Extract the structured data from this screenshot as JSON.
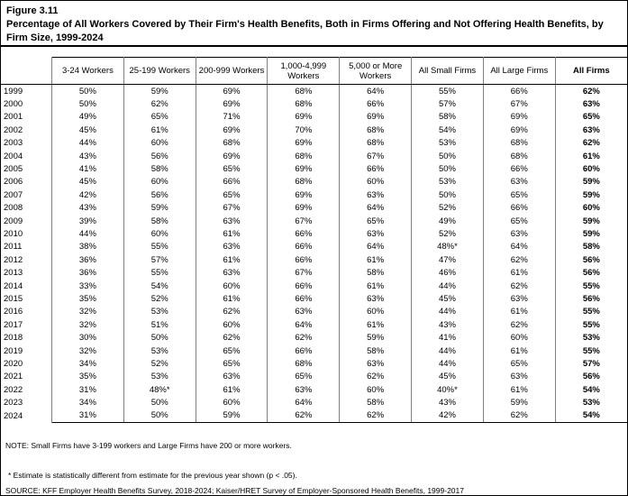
{
  "figure": {
    "number": "Figure 3.11",
    "title": "Percentage of All Workers Covered by Their Firm's Health Benefits, Both in Firms Offering and Not Offering Health Benefits, by Firm Size, 1999-2024"
  },
  "table": {
    "columns": [
      "",
      "3-24 Workers",
      "25-199 Workers",
      "200-999 Workers",
      "1,000-4,999 Workers",
      "5,000 or More Workers",
      "All Small Firms",
      "All Large Firms",
      "All Firms"
    ],
    "rows": [
      [
        "1999",
        "50%",
        "59%",
        "69%",
        "68%",
        "64%",
        "55%",
        "66%",
        "62%"
      ],
      [
        "2000",
        "50%",
        "62%",
        "69%",
        "68%",
        "66%",
        "57%",
        "67%",
        "63%"
      ],
      [
        "2001",
        "49%",
        "65%",
        "71%",
        "69%",
        "69%",
        "58%",
        "69%",
        "65%"
      ],
      [
        "2002",
        "45%",
        "61%",
        "69%",
        "70%",
        "68%",
        "54%",
        "69%",
        "63%"
      ],
      [
        "2003",
        "44%",
        "60%",
        "68%",
        "69%",
        "68%",
        "53%",
        "68%",
        "62%"
      ],
      [
        "2004",
        "43%",
        "56%",
        "69%",
        "68%",
        "67%",
        "50%",
        "68%",
        "61%"
      ],
      [
        "2005",
        "41%",
        "58%",
        "65%",
        "69%",
        "66%",
        "50%",
        "66%",
        "60%"
      ],
      [
        "2006",
        "45%",
        "60%",
        "66%",
        "68%",
        "60%",
        "53%",
        "63%",
        "59%"
      ],
      [
        "2007",
        "42%",
        "56%",
        "65%",
        "69%",
        "63%",
        "50%",
        "65%",
        "59%"
      ],
      [
        "2008",
        "43%",
        "59%",
        "67%",
        "69%",
        "64%",
        "52%",
        "66%",
        "60%"
      ],
      [
        "2009",
        "39%",
        "58%",
        "63%",
        "67%",
        "65%",
        "49%",
        "65%",
        "59%"
      ],
      [
        "2010",
        "44%",
        "60%",
        "61%",
        "66%",
        "63%",
        "52%",
        "63%",
        "59%"
      ],
      [
        "2011",
        "38%",
        "55%",
        "63%",
        "66%",
        "64%",
        "48%*",
        "64%",
        "58%"
      ],
      [
        "2012",
        "36%",
        "57%",
        "61%",
        "66%",
        "61%",
        "47%",
        "62%",
        "56%"
      ],
      [
        "2013",
        "36%",
        "55%",
        "63%",
        "67%",
        "58%",
        "46%",
        "61%",
        "56%"
      ],
      [
        "2014",
        "33%",
        "54%",
        "60%",
        "66%",
        "61%",
        "44%",
        "62%",
        "55%"
      ],
      [
        "2015",
        "35%",
        "52%",
        "61%",
        "66%",
        "63%",
        "45%",
        "63%",
        "56%"
      ],
      [
        "2016",
        "32%",
        "53%",
        "62%",
        "63%",
        "60%",
        "44%",
        "61%",
        "55%"
      ],
      [
        "2017",
        "32%",
        "51%",
        "60%",
        "64%",
        "61%",
        "43%",
        "62%",
        "55%"
      ],
      [
        "2018",
        "30%",
        "50%",
        "62%",
        "62%",
        "59%",
        "41%",
        "60%",
        "53%"
      ],
      [
        "2019",
        "32%",
        "53%",
        "65%",
        "66%",
        "58%",
        "44%",
        "61%",
        "55%"
      ],
      [
        "2020",
        "34%",
        "52%",
        "65%",
        "68%",
        "63%",
        "44%",
        "65%",
        "57%"
      ],
      [
        "2021",
        "35%",
        "53%",
        "63%",
        "65%",
        "62%",
        "45%",
        "63%",
        "56%"
      ],
      [
        "2022",
        "31%",
        "48%*",
        "61%",
        "63%",
        "60%",
        "40%*",
        "61%",
        "54%"
      ],
      [
        "2023",
        "34%",
        "50%",
        "60%",
        "64%",
        "58%",
        "43%",
        "59%",
        "53%"
      ],
      [
        "2024",
        "31%",
        "50%",
        "59%",
        "62%",
        "62%",
        "42%",
        "62%",
        "54%"
      ]
    ]
  },
  "notes": {
    "note": "NOTE: Small Firms have 3-199 workers and Large Firms have 200 or more workers.",
    "footnote": "* Estimate is statistically different from estimate for the previous year shown (p < .05).",
    "source": "SOURCE: KFF Employer Health Benefits Survey, 2018-2024; Kaiser/HRET Survey of Employer-Sponsored Health Benefits, 1999-2017"
  }
}
